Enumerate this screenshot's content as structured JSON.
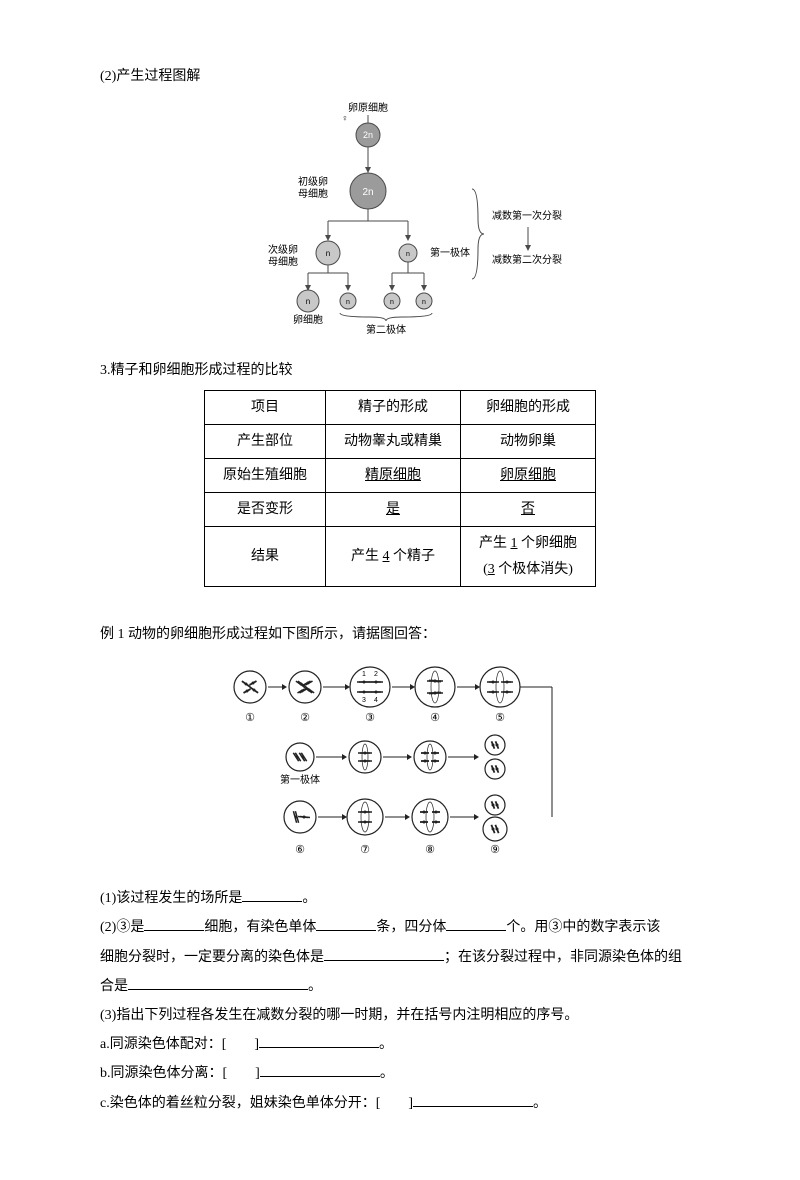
{
  "section_a": {
    "title": "(2)产生过程图解",
    "diagram": {
      "top_label": "卵原细胞",
      "gender_mark": "♀",
      "n2": "2n",
      "primary_label": "初级卵\n母细胞",
      "secondary_label": "次级卵\n母细胞",
      "polar1_label": "第一极体",
      "egg_label": "卵细胞",
      "polar2_label": "第二极体",
      "n": "n",
      "brace_top": "减数第一次分裂",
      "brace_bottom": "减数第二次分裂",
      "color_cell_2n": "#9b9b9b",
      "color_cell_n": "#c8c8c8",
      "color_stroke": "#4a4a4a",
      "font_label": 10
    }
  },
  "section_b": {
    "title": "3.精子和卵细胞形成过程的比较",
    "table": {
      "rows": [
        [
          "项目",
          "精子的形成",
          "卵细胞的形成"
        ],
        [
          "产生部位",
          [
            "动物",
            "睾丸",
            "或",
            "精巢"
          ],
          [
            "动物",
            "卵巢"
          ]
        ],
        [
          "原始生殖细胞",
          [
            [
              "u",
              "精原细胞"
            ]
          ],
          [
            [
              "u",
              "卵原细胞"
            ]
          ]
        ],
        [
          "是否变形",
          [
            [
              "u",
              "是"
            ]
          ],
          [
            [
              "u",
              "否"
            ]
          ]
        ],
        [
          "结果",
          [
            "产生 ",
            [
              "u",
              "4"
            ],
            " 个精子"
          ],
          [
            "产生 ",
            [
              "u",
              "1"
            ],
            " 个卵细胞",
            [
              "br"
            ],
            "(",
            [
              "u",
              "3"
            ],
            " 个极体消失)"
          ]
        ]
      ]
    }
  },
  "example": {
    "title": "例 1  动物的卵细胞形成过程如下图所示，请据图回答：",
    "diagram": {
      "circle_stroke": "#222",
      "circle_fill": "#fff",
      "row1_nums": [
        "①",
        "②",
        "③",
        "④",
        "⑤"
      ],
      "row2_label": "第一极体",
      "row3_nums": [
        "⑥",
        "⑦",
        "⑧",
        "⑨"
      ],
      "chrom_nums": [
        "1",
        "2",
        "3",
        "4"
      ]
    },
    "q1": "(1)该过程发生的场所是",
    "q1_end": "。",
    "q2a": "(2)③是",
    "q2b": "细胞，有染色单体",
    "q2c": "条，四分体",
    "q2d": "个。用③中的数字表示该",
    "q2e": "细胞分裂时，一定要分离的染色体是",
    "q2f": "；在该分裂过程中，非同源染色体的组",
    "q2g": "合是",
    "q2h": "。",
    "q3": "(3)指出下列过程各发生在减数分裂的哪一时期，并在括号内注明相应的序号。",
    "q3a": "a.同源染色体配对：[　　]",
    "q3b": "b.同源染色体分离：[　　]",
    "q3c": "c.染色体的着丝粒分裂，姐妹染色单体分开：[　　]",
    "q3_end": "。"
  }
}
